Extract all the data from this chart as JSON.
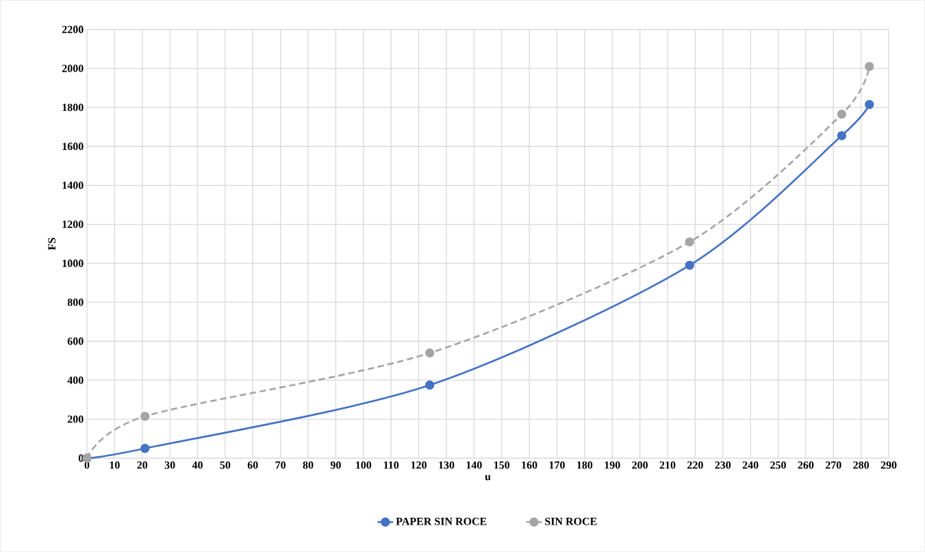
{
  "chart_data": {
    "type": "line",
    "xlabel": "u",
    "ylabel": "FS",
    "xlim": [
      0,
      290
    ],
    "xticks": [
      0,
      10,
      20,
      30,
      40,
      50,
      60,
      70,
      80,
      90,
      100,
      110,
      120,
      130,
      140,
      150,
      160,
      170,
      180,
      190,
      200,
      210,
      220,
      230,
      240,
      250,
      260,
      270,
      280,
      290
    ],
    "ylim": [
      0,
      2200
    ],
    "yticks": [
      0,
      200,
      400,
      600,
      800,
      1000,
      1200,
      1400,
      1600,
      1800,
      2000,
      2200
    ],
    "grid": true,
    "legend": "bottom",
    "marker": "circle",
    "series": [
      {
        "name": "PAPER SIN ROCE",
        "color": "#4472c4",
        "line_style": "solid",
        "x": [
          0,
          21,
          124,
          218,
          273,
          283
        ],
        "values": [
          0,
          50,
          375,
          990,
          1655,
          1815
        ]
      },
      {
        "name": "SIN ROCE",
        "color": "#a5a5a5",
        "line_style": "dashed",
        "x": [
          0,
          21,
          124,
          218,
          273,
          283
        ],
        "values": [
          0,
          215,
          540,
          1110,
          1765,
          2010
        ]
      }
    ]
  }
}
